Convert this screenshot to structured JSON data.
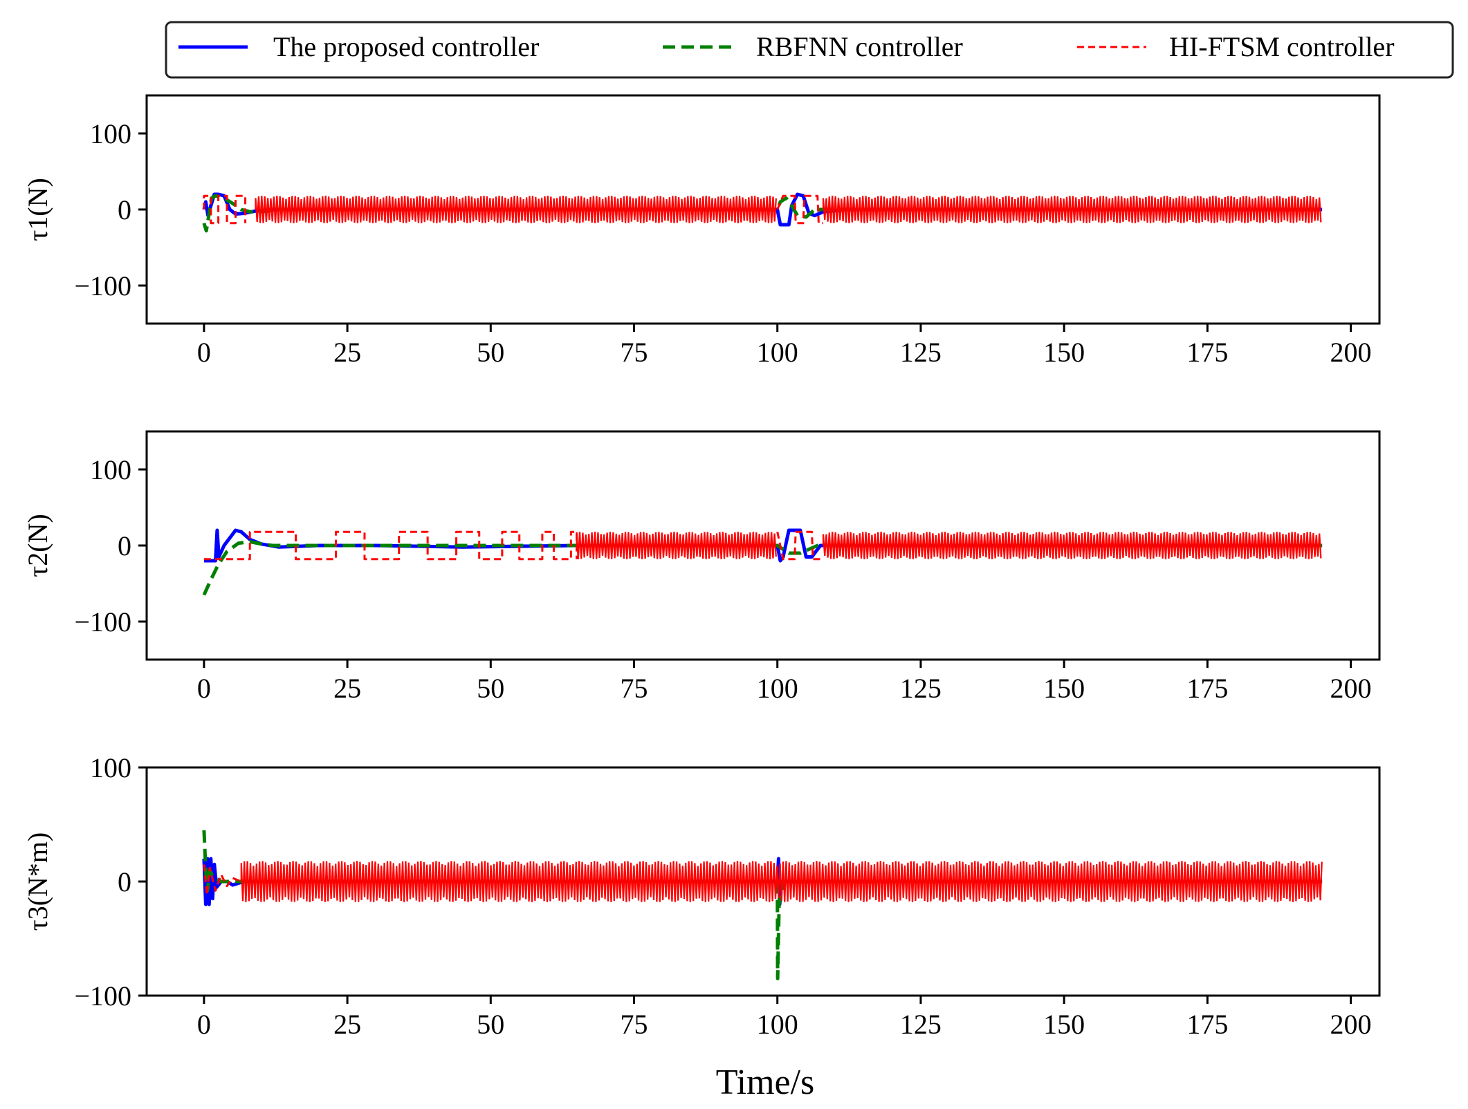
{
  "chart_data": {
    "type": "line",
    "xlabel": "Time/s",
    "legend": {
      "placement": "top",
      "entries": [
        {
          "name": "The proposed controller",
          "color": "#0000ff",
          "style": "solid"
        },
        {
          "name": "RBFNN controller",
          "color": "#008000",
          "style": "dashed"
        },
        {
          "name": "HI-FTSM controller",
          "color": "#ff0000",
          "style": "dashed-fine"
        }
      ]
    },
    "xlim": [
      -10,
      205
    ],
    "xticks": [
      0,
      25,
      50,
      75,
      100,
      125,
      150,
      175,
      200
    ],
    "subplots": [
      {
        "id": "tau1",
        "ylabel": "τ1(N)",
        "ylim": [
          -150,
          150
        ],
        "yticks": [
          -100,
          0,
          100
        ],
        "ytick_labels": [
          "−100",
          "0",
          "100"
        ],
        "series": [
          {
            "name": "The proposed controller",
            "points": [
              [
                0,
                0
              ],
              [
                0.3,
                10
              ],
              [
                0.7,
                -8
              ],
              [
                1.2,
                5
              ],
              [
                1.8,
                20
              ],
              [
                2.5,
                20
              ],
              [
                3.5,
                18
              ],
              [
                4.5,
                0
              ],
              [
                5.5,
                -6
              ],
              [
                7,
                -5
              ],
              [
                9,
                -2
              ],
              [
                12,
                0
              ],
              [
                20,
                0
              ],
              [
                60,
                0
              ],
              [
                100,
                0
              ],
              [
                100.5,
                -20
              ],
              [
                102,
                -20
              ],
              [
                102.5,
                5
              ],
              [
                103.5,
                20
              ],
              [
                104.5,
                18
              ],
              [
                105.5,
                -5
              ],
              [
                106.5,
                -8
              ],
              [
                108,
                -3
              ],
              [
                112,
                0
              ],
              [
                195,
                0
              ]
            ]
          },
          {
            "name": "RBFNN controller",
            "points": [
              [
                0,
                -18
              ],
              [
                0.4,
                -28
              ],
              [
                0.8,
                -10
              ],
              [
                1.3,
                15
              ],
              [
                2,
                18
              ],
              [
                3.5,
                15
              ],
              [
                5,
                8
              ],
              [
                6.5,
                0
              ],
              [
                8,
                -3
              ],
              [
                10,
                -3
              ],
              [
                13,
                0
              ],
              [
                100,
                0
              ],
              [
                100.5,
                10
              ],
              [
                101.5,
                15
              ],
              [
                102.5,
                5
              ],
              [
                103.5,
                -8
              ],
              [
                105,
                -10
              ],
              [
                106.5,
                0
              ],
              [
                108,
                0
              ],
              [
                195,
                0
              ]
            ]
          },
          {
            "name": "HI-FTSM controller",
            "chatter_amplitude": 18,
            "chatter_intervals": [
              [
                9,
                100
              ],
              [
                108,
                195
              ]
            ],
            "initial_switch_times": [
              0,
              1.2,
              2.5,
              4,
              5.5,
              7.2
            ],
            "points": [
              [
                100,
                0
              ],
              [
                101,
                18
              ],
              [
                103,
                18
              ],
              [
                103.2,
                -18
              ],
              [
                104.5,
                -18
              ],
              [
                104.7,
                18
              ],
              [
                107,
                18
              ],
              [
                107.2,
                -18
              ],
              [
                108,
                -18
              ]
            ]
          }
        ]
      },
      {
        "id": "tau2",
        "ylabel": "τ2(N)",
        "ylim": [
          -150,
          150
        ],
        "yticks": [
          -100,
          0,
          100
        ],
        "ytick_labels": [
          "−100",
          "0",
          "100"
        ],
        "series": [
          {
            "name": "The proposed controller",
            "points": [
              [
                0,
                -20
              ],
              [
                2,
                -20
              ],
              [
                2.3,
                20
              ],
              [
                2.6,
                -15
              ],
              [
                3.5,
                0
              ],
              [
                4.5,
                10
              ],
              [
                5.5,
                20
              ],
              [
                6.5,
                18
              ],
              [
                8,
                8
              ],
              [
                10,
                2
              ],
              [
                13,
                -2
              ],
              [
                20,
                0
              ],
              [
                30,
                0
              ],
              [
                45,
                -2
              ],
              [
                65,
                0
              ],
              [
                100,
                0
              ],
              [
                100.5,
                -20
              ],
              [
                101,
                -15
              ],
              [
                102,
                20
              ],
              [
                104,
                20
              ],
              [
                105,
                -15
              ],
              [
                106,
                -15
              ],
              [
                107.5,
                0
              ],
              [
                195,
                0
              ]
            ]
          },
          {
            "name": "RBFNN controller",
            "points": [
              [
                0,
                -65
              ],
              [
                1.2,
                -45
              ],
              [
                2.5,
                -25
              ],
              [
                4,
                -8
              ],
              [
                6,
                3
              ],
              [
                8,
                5
              ],
              [
                10,
                2
              ],
              [
                12,
                0
              ],
              [
                100,
                0
              ],
              [
                101,
                -5
              ],
              [
                102,
                -10
              ],
              [
                104,
                -10
              ],
              [
                105.5,
                -5
              ],
              [
                107,
                0
              ],
              [
                195,
                0
              ]
            ]
          },
          {
            "name": "HI-FTSM controller",
            "amplitude": 18,
            "square_segments": [
              [
                0,
                -18
              ],
              [
                3,
                -18
              ],
              [
                8,
                18
              ],
              [
                16,
                -18
              ],
              [
                23,
                18
              ],
              [
                28,
                -18
              ],
              [
                34,
                18
              ],
              [
                39,
                -18
              ],
              [
                44,
                18
              ],
              [
                48,
                -18
              ],
              [
                52,
                18
              ],
              [
                55,
                -18
              ],
              [
                59,
                18
              ],
              [
                61,
                -18
              ],
              [
                64,
                18
              ],
              [
                65,
                -18
              ]
            ],
            "chatter_intervals": [
              [
                65,
                100
              ],
              [
                108,
                195
              ]
            ],
            "points": [
              [
                100,
                18
              ],
              [
                101,
                -18
              ],
              [
                103,
                -18
              ],
              [
                103.2,
                18
              ],
              [
                106,
                18
              ],
              [
                106.2,
                -18
              ],
              [
                108,
                -18
              ]
            ]
          }
        ]
      },
      {
        "id": "tau3",
        "ylabel": "τ3(N*m)",
        "ylim": [
          -100,
          100
        ],
        "yticks": [
          -100,
          0,
          100
        ],
        "ytick_labels": [
          "−100",
          "0",
          "100"
        ],
        "series": [
          {
            "name": "The proposed controller",
            "points": [
              [
                0,
                20
              ],
              [
                0.3,
                -20
              ],
              [
                0.6,
                20
              ],
              [
                0.9,
                -20
              ],
              [
                1.2,
                20
              ],
              [
                1.5,
                -15
              ],
              [
                1.8,
                15
              ],
              [
                2.2,
                -5
              ],
              [
                3,
                0
              ],
              [
                4,
                0
              ],
              [
                5,
                -3
              ],
              [
                7,
                0
              ],
              [
                100,
                0
              ],
              [
                100.2,
                20
              ],
              [
                100.4,
                -20
              ],
              [
                100.8,
                0
              ],
              [
                195,
                0
              ]
            ]
          },
          {
            "name": "RBFNN controller",
            "points": [
              [
                0,
                45
              ],
              [
                0.3,
                10
              ],
              [
                0.6,
                -8
              ],
              [
                1,
                10
              ],
              [
                1.5,
                5
              ],
              [
                3,
                0
              ],
              [
                100,
                0
              ],
              [
                100.05,
                -85
              ],
              [
                100.3,
                -20
              ],
              [
                101,
                0
              ],
              [
                195,
                0
              ]
            ]
          },
          {
            "name": "HI-FTSM controller",
            "chatter_amplitude": 18,
            "chatter_intervals": [
              [
                6.5,
                195
              ]
            ],
            "points": [
              [
                0,
                15
              ],
              [
                0.5,
                -12
              ],
              [
                1,
                12
              ],
              [
                2,
                -8
              ],
              [
                3,
                6
              ],
              [
                4,
                -4
              ],
              [
                5,
                3
              ],
              [
                6.5,
                0
              ]
            ]
          }
        ]
      }
    ]
  }
}
